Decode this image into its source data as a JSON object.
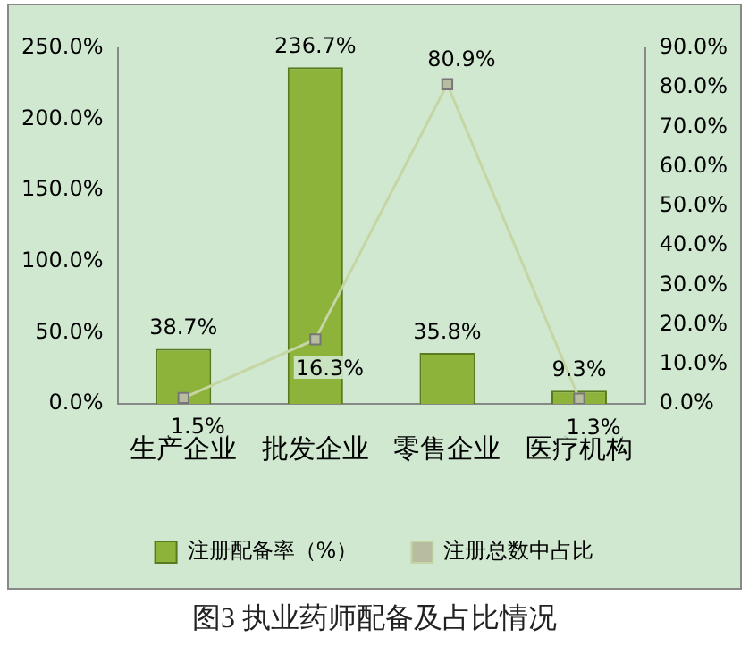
{
  "chart_data": {
    "type": "bar",
    "title": "图3 执业药师配备及占比情况",
    "categories": [
      "生产企业",
      "批发企业",
      "零售企业",
      "医疗机构"
    ],
    "series": [
      {
        "name": "注册配备率（%）",
        "color": "#8db33a",
        "values": [
          38.7,
          236.7,
          35.8,
          9.3
        ],
        "value_labels": [
          "38.7%",
          "236.7%",
          "35.8%",
          "9.3%"
        ]
      },
      {
        "name": "注册总数中占比",
        "type": "line",
        "axis": "y2",
        "color": "#c5d6a4",
        "values": [
          1.5,
          16.3,
          80.9,
          1.3
        ],
        "value_labels": [
          "1.5%",
          "16.3%",
          "80.9%",
          "1.3%"
        ]
      }
    ],
    "ylim": [
      0,
      250
    ],
    "yticks": [
      {
        "value": 0,
        "label": "0.0%"
      },
      {
        "value": 50,
        "label": "50.0%"
      },
      {
        "value": 100,
        "label": "100.0%"
      },
      {
        "value": 150,
        "label": "150.0%"
      },
      {
        "value": 200,
        "label": "200.0%"
      },
      {
        "value": 250,
        "label": "250.0%"
      }
    ],
    "y2lim": [
      0,
      90
    ],
    "y2ticks": [
      {
        "value": 0,
        "label": "0.0%"
      },
      {
        "value": 10,
        "label": "10.0%"
      },
      {
        "value": 20,
        "label": "20.0%"
      },
      {
        "value": 30,
        "label": "30.0%"
      },
      {
        "value": 40,
        "label": "40.0%"
      },
      {
        "value": 50,
        "label": "50.0%"
      },
      {
        "value": 60,
        "label": "60.0%"
      },
      {
        "value": 70,
        "label": "70.0%"
      },
      {
        "value": 80,
        "label": "80.0%"
      },
      {
        "value": 90,
        "label": "90.0%"
      }
    ],
    "marker": "square",
    "grid": false,
    "legend": "bottom"
  }
}
